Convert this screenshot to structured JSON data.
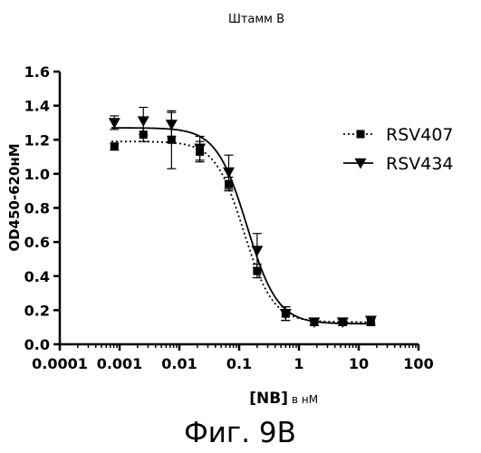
{
  "chart_data": {
    "type": "scatter",
    "title": "Штамм В",
    "ylabel": "OD450-620нМ",
    "xlabel_main": "[NB]",
    "xlabel_unit": "в нМ",
    "xscale": "log",
    "xlim": [
      0.0001,
      100
    ],
    "ylim": [
      0.0,
      1.6
    ],
    "xticks": [
      "0.0001",
      "0.001",
      "0.01",
      "0.1",
      "1",
      "10",
      "100"
    ],
    "yticks": [
      "0.0",
      "0.2",
      "0.4",
      "0.6",
      "0.8",
      "1.0",
      "1.2",
      "1.4",
      "1.6"
    ],
    "legend_position": "right",
    "series": [
      {
        "name": "RSV407",
        "marker": "square",
        "line": "dotted",
        "x": [
          0.00082,
          0.0025,
          0.0074,
          0.022,
          0.067,
          0.2,
          0.6,
          1.8,
          5.4,
          16
        ],
        "y": [
          1.16,
          1.23,
          1.2,
          1.13,
          0.94,
          0.43,
          0.18,
          0.13,
          0.13,
          0.13
        ],
        "err": [
          0.02,
          0.04,
          0.17,
          0.06,
          0.04,
          0.04,
          0.04,
          0.02,
          0.02,
          0.02
        ],
        "fit": {
          "top": 1.19,
          "bottom": 0.13,
          "ec50": 0.12,
          "hill": 1.8
        }
      },
      {
        "name": "RSV434",
        "marker": "triangle-down",
        "line": "solid",
        "x": [
          0.00082,
          0.0025,
          0.0074,
          0.022,
          0.067,
          0.2,
          0.6,
          1.8,
          5.4,
          16
        ],
        "y": [
          1.3,
          1.31,
          1.29,
          1.15,
          1.01,
          0.55,
          0.18,
          0.13,
          0.13,
          0.14
        ],
        "err": [
          0.04,
          0.08,
          0.07,
          0.07,
          0.1,
          0.1,
          0.04,
          0.02,
          0.02,
          0.02
        ],
        "fit": {
          "top": 1.27,
          "bottom": 0.12,
          "ec50": 0.135,
          "hill": 1.7
        }
      }
    ]
  },
  "caption": "Фиг. 9В"
}
